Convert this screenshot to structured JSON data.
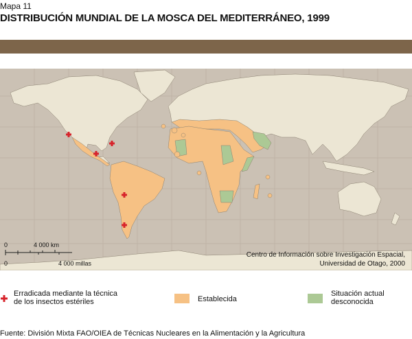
{
  "map_label": "Mapa 11",
  "title": "DISTRIBUCIÓN MUNDIAL DE LA MOSCA DEL MEDITERRÁNEO, 1999",
  "scale": {
    "zero_km": "0",
    "km": "4 000 km",
    "zero_mi": "0",
    "mi": "4 000 millas"
  },
  "credit": {
    "line1": "Centro de Información sobre Investigación Espacial,",
    "line2": "Universidad de Otago, 2000"
  },
  "legend": [
    {
      "label_line1": "Erradicada mediante la técnica",
      "label_line2": "de los insectos estériles",
      "icon": "red-cross-icon",
      "color": "#d7232b"
    },
    {
      "label_line1": "Establecida",
      "label_line2": "",
      "color": "#f6c184"
    },
    {
      "label_line1": "Situación actual",
      "label_line2": "desconocida",
      "color": "#acc995"
    }
  ],
  "colors": {
    "ocean": "#cbc1b4",
    "land": "#ece6d4",
    "established": "#f6c184",
    "unknown": "#acc995",
    "band": "#7d654a"
  },
  "source": "Fuente: División Mixta FAO/OIEA de Técnicas Nucleares en la Alimentación y la Agricultura"
}
